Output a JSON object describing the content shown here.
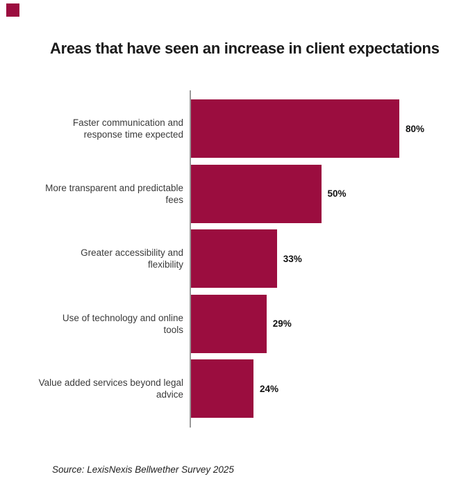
{
  "page": {
    "background": "#ffffff"
  },
  "brand": {
    "color": "#9B0D3F"
  },
  "chart_data": {
    "type": "bar",
    "orientation": "horizontal",
    "title": "Areas that have seen an increase in client expectations",
    "categories": [
      "Faster communication and response time expected",
      "More transparent and predictable fees",
      "Greater accessibility and flexibility",
      "Use of technology and online tools",
      "Value added services beyond legal advice"
    ],
    "category_display": [
      "Faster communication and\nresponse time expected",
      "More transparent and predictable\nfees",
      "Greater accessibility and\nflexibility",
      "Use of technology and online\ntools",
      "Value added services beyond legal\nadvice"
    ],
    "values": [
      80,
      50,
      33,
      29,
      24
    ],
    "value_labels": [
      "80%",
      "50%",
      "33%",
      "29%",
      "24%"
    ],
    "xlabel": "",
    "ylabel": "",
    "xlim": [
      0,
      100
    ],
    "grid": false,
    "legend": false,
    "bar_color": "#9B0D3F",
    "axis_color": "#9a9a9a"
  },
  "footer": {
    "source": "Source: LexisNexis Bellwether Survey 2025"
  }
}
